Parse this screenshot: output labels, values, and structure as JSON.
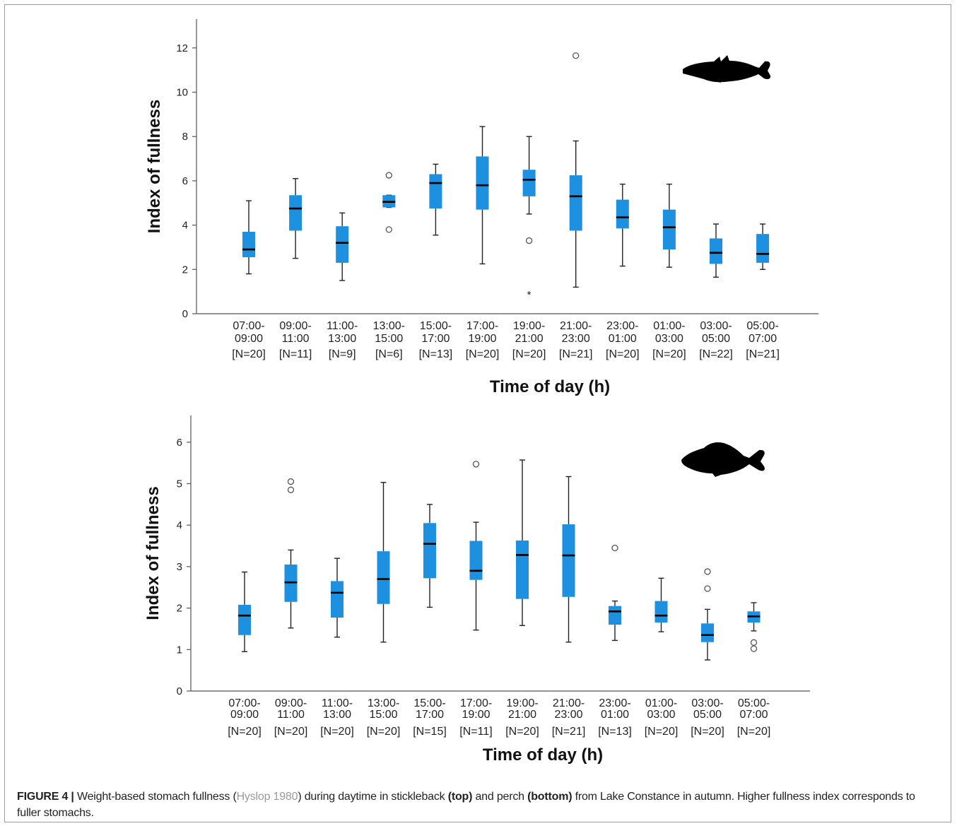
{
  "caption": {
    "label": "FIGURE 4 |",
    "text_1": " Weight-based stomach fullness (",
    "ref": "Hyslop 1980",
    "text_2": ") during daytime in stickleback ",
    "top": "(top)",
    "text_3": " and perch ",
    "bottom": "(bottom)",
    "text_4": " from Lake Constance in autumn. Higher fullness index corresponds to fuller stomachs."
  },
  "colors": {
    "box_fill": "#1e90e0",
    "median": "#000000",
    "whisker": "#222222",
    "axis": "#555555"
  },
  "icons": [
    "stickleback-silhouette-icon",
    "perch-silhouette-icon"
  ],
  "chart_data": [
    {
      "type": "boxplot",
      "ylabel": "Index of fullness",
      "xlabel": "Time of day (h)",
      "ylim": [
        0,
        13
      ],
      "yticks": [
        0,
        2,
        4,
        6,
        8,
        10,
        12
      ],
      "categories": [
        {
          "line1": "07:00-",
          "line2": "09:00",
          "n": "[N=20]"
        },
        {
          "line1": "09:00-",
          "line2": "11:00",
          "n": "[N=11]"
        },
        {
          "line1": "11:00-",
          "line2": "13:00",
          "n": "[N=9]"
        },
        {
          "line1": "13:00-",
          "line2": "15:00",
          "n": "[N=6]"
        },
        {
          "line1": "15:00-",
          "line2": "17:00",
          "n": "[N=13]"
        },
        {
          "line1": "17:00-",
          "line2": "19:00",
          "n": "[N=20]"
        },
        {
          "line1": "19:00-",
          "line2": "21:00",
          "n": "[N=20]"
        },
        {
          "line1": "21:00-",
          "line2": "23:00",
          "n": "[N=21]"
        },
        {
          "line1": "23:00-",
          "line2": "01:00",
          "n": "[N=20]"
        },
        {
          "line1": "01:00-",
          "line2": "03:00",
          "n": "[N=20]"
        },
        {
          "line1": "03:00-",
          "line2": "05:00",
          "n": "[N=22]"
        },
        {
          "line1": "05:00-",
          "line2": "07:00",
          "n": "[N=21]"
        }
      ],
      "boxes": [
        {
          "min": 1.8,
          "q1": 2.55,
          "median": 2.9,
          "q3": 3.7,
          "max": 5.1,
          "outliers": [],
          "extremes": []
        },
        {
          "min": 2.5,
          "q1": 3.75,
          "median": 4.75,
          "q3": 5.35,
          "max": 6.1,
          "outliers": [],
          "extremes": []
        },
        {
          "min": 1.5,
          "q1": 2.3,
          "median": 3.2,
          "q3": 3.95,
          "max": 4.55,
          "outliers": [],
          "extremes": []
        },
        {
          "min": 4.8,
          "q1": 4.8,
          "median": 5.05,
          "q3": 5.35,
          "max": 5.35,
          "outliers": [
            6.25,
            3.8
          ],
          "extremes": []
        },
        {
          "min": 3.55,
          "q1": 4.75,
          "median": 5.9,
          "q3": 6.3,
          "max": 6.75,
          "outliers": [],
          "extremes": []
        },
        {
          "min": 2.25,
          "q1": 4.7,
          "median": 5.8,
          "q3": 7.1,
          "max": 8.45,
          "outliers": [],
          "extremes": []
        },
        {
          "min": 4.5,
          "q1": 5.3,
          "median": 6.05,
          "q3": 6.5,
          "max": 8.0,
          "outliers": [
            3.3
          ],
          "extremes": [
            0.9
          ]
        },
        {
          "min": 1.2,
          "q1": 3.75,
          "median": 5.3,
          "q3": 6.25,
          "max": 7.8,
          "outliers": [
            11.65
          ],
          "extremes": []
        },
        {
          "min": 2.15,
          "q1": 3.85,
          "median": 4.35,
          "q3": 5.15,
          "max": 5.85,
          "outliers": [],
          "extremes": []
        },
        {
          "min": 2.1,
          "q1": 2.9,
          "median": 3.9,
          "q3": 4.7,
          "max": 5.85,
          "outliers": [],
          "extremes": []
        },
        {
          "min": 1.65,
          "q1": 2.25,
          "median": 2.75,
          "q3": 3.4,
          "max": 4.05,
          "outliers": [],
          "extremes": []
        },
        {
          "min": 2.0,
          "q1": 2.3,
          "median": 2.7,
          "q3": 3.6,
          "max": 4.05,
          "outliers": [],
          "extremes": []
        }
      ]
    },
    {
      "type": "boxplot",
      "ylabel": "Index of fullness",
      "xlabel": "Time of day (h)",
      "ylim": [
        0,
        6.6
      ],
      "yticks": [
        0,
        1,
        2,
        3,
        4,
        5,
        6
      ],
      "categories": [
        {
          "line1": "07:00-",
          "line2": "09:00",
          "n": "[N=20]"
        },
        {
          "line1": "09:00-",
          "line2": "11:00",
          "n": "[N=20]"
        },
        {
          "line1": "11:00-",
          "line2": "13:00",
          "n": "[N=20]"
        },
        {
          "line1": "13:00-",
          "line2": "15:00",
          "n": "[N=20]"
        },
        {
          "line1": "15:00-",
          "line2": "17:00",
          "n": "[N=15]"
        },
        {
          "line1": "17:00-",
          "line2": "19:00",
          "n": "[N=11]"
        },
        {
          "line1": "19:00-",
          "line2": "21:00",
          "n": "[N=20]"
        },
        {
          "line1": "21:00-",
          "line2": "23:00",
          "n": "[N=21]"
        },
        {
          "line1": "23:00-",
          "line2": "01:00",
          "n": "[N=13]"
        },
        {
          "line1": "01:00-",
          "line2": "03:00",
          "n": "[N=20]"
        },
        {
          "line1": "03:00-",
          "line2": "05:00",
          "n": "[N=20]"
        },
        {
          "line1": "05:00-",
          "line2": "07:00",
          "n": "[N=20]"
        }
      ],
      "boxes": [
        {
          "min": 0.95,
          "q1": 1.35,
          "median": 1.82,
          "q3": 2.08,
          "max": 2.87,
          "outliers": [],
          "extremes": []
        },
        {
          "min": 1.52,
          "q1": 2.15,
          "median": 2.62,
          "q3": 3.05,
          "max": 3.4,
          "outliers": [
            5.05,
            4.85
          ],
          "extremes": []
        },
        {
          "min": 1.3,
          "q1": 1.77,
          "median": 2.37,
          "q3": 2.65,
          "max": 3.2,
          "outliers": [],
          "extremes": []
        },
        {
          "min": 1.18,
          "q1": 2.1,
          "median": 2.7,
          "q3": 3.37,
          "max": 5.03,
          "outliers": [],
          "extremes": []
        },
        {
          "min": 2.02,
          "q1": 2.72,
          "median": 3.55,
          "q3": 4.05,
          "max": 4.5,
          "outliers": [],
          "extremes": []
        },
        {
          "min": 1.47,
          "q1": 2.68,
          "median": 2.9,
          "q3": 3.62,
          "max": 4.07,
          "outliers": [
            5.47
          ],
          "extremes": []
        },
        {
          "min": 1.58,
          "q1": 2.22,
          "median": 3.28,
          "q3": 3.63,
          "max": 5.57,
          "outliers": [],
          "extremes": []
        },
        {
          "min": 1.18,
          "q1": 2.27,
          "median": 3.27,
          "q3": 4.02,
          "max": 5.17,
          "outliers": [],
          "extremes": []
        },
        {
          "min": 1.22,
          "q1": 1.6,
          "median": 1.92,
          "q3": 2.05,
          "max": 2.17,
          "outliers": [
            3.45
          ],
          "extremes": []
        },
        {
          "min": 1.43,
          "q1": 1.65,
          "median": 1.82,
          "q3": 2.17,
          "max": 2.72,
          "outliers": [],
          "extremes": []
        },
        {
          "min": 0.75,
          "q1": 1.18,
          "median": 1.35,
          "q3": 1.63,
          "max": 1.97,
          "outliers": [
            2.88,
            2.47
          ],
          "extremes": []
        },
        {
          "min": 1.45,
          "q1": 1.65,
          "median": 1.8,
          "q3": 1.92,
          "max": 2.13,
          "outliers": [
            1.17,
            1.02
          ],
          "extremes": []
        }
      ]
    }
  ]
}
